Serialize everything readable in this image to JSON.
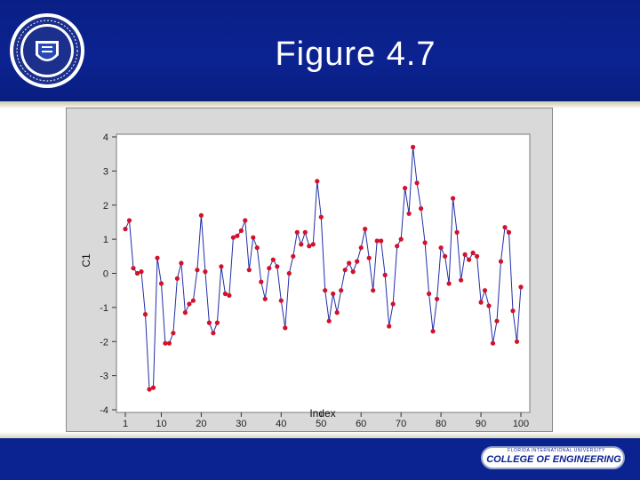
{
  "slide": {
    "title": "Figure 4.7",
    "footer_tagline": "FLORIDA INTERNATIONAL UNIVERSITY",
    "footer_college": "COLLEGE OF ENGINEERING"
  },
  "colors": {
    "header_blue": "#0b2291",
    "series_line": "#1f2fa8",
    "series_point": "#d4102a",
    "plot_bg": "#ffffff",
    "frame_bg": "#d9d9d9"
  },
  "chart_data": {
    "type": "line",
    "title": "",
    "xlabel": "Index",
    "ylabel": "C1",
    "xlim": [
      1,
      100
    ],
    "ylim": [
      -4,
      4
    ],
    "xticks": [
      1,
      10,
      20,
      30,
      40,
      50,
      60,
      70,
      80,
      90,
      100
    ],
    "yticks": [
      4,
      3,
      2,
      1,
      0,
      -1,
      -2,
      -3,
      -4
    ],
    "grid": false,
    "legend": "none",
    "x": [
      1,
      2,
      3,
      4,
      5,
      6,
      7,
      8,
      9,
      10,
      11,
      12,
      13,
      14,
      15,
      16,
      17,
      18,
      19,
      20,
      21,
      22,
      23,
      24,
      25,
      26,
      27,
      28,
      29,
      30,
      31,
      32,
      33,
      34,
      35,
      36,
      37,
      38,
      39,
      40,
      41,
      42,
      43,
      44,
      45,
      46,
      47,
      48,
      49,
      50,
      51,
      52,
      53,
      54,
      55,
      56,
      57,
      58,
      59,
      60,
      61,
      62,
      63,
      64,
      65,
      66,
      67,
      68,
      69,
      70,
      71,
      72,
      73,
      74,
      75,
      76,
      77,
      78,
      79,
      80,
      81,
      82,
      83,
      84,
      85,
      86,
      87,
      88,
      89,
      90,
      91,
      92,
      93,
      94,
      95,
      96,
      97,
      98,
      99,
      100
    ],
    "series": [
      {
        "name": "",
        "values": [
          1.3,
          1.55,
          0.15,
          0,
          0.05,
          -1.2,
          -3.4,
          -3.35,
          0.45,
          -0.3,
          -2.05,
          -2.05,
          -1.75,
          -0.15,
          0.3,
          -1.15,
          -0.9,
          -0.8,
          0.1,
          1.7,
          0.05,
          -1.45,
          -1.75,
          -1.45,
          0.2,
          -0.6,
          -0.65,
          1.05,
          1.1,
          1.25,
          1.55,
          0.1,
          1.05,
          0.75,
          -0.25,
          -0.75,
          0.15,
          0.4,
          0.2,
          -0.8,
          -1.6,
          0.0,
          0.5,
          1.2,
          0.85,
          1.2,
          0.8,
          0.85,
          2.7,
          1.65,
          -0.5,
          -1.4,
          -0.6,
          -1.15,
          -0.5,
          0.1,
          0.3,
          0.05,
          0.35,
          0.75,
          1.3,
          0.45,
          -0.5,
          0.95,
          0.95,
          -0.05,
          -1.55,
          -0.9,
          0.8,
          1.0,
          2.5,
          1.75,
          3.7,
          2.65,
          1.9,
          0.9,
          -0.6,
          -1.7,
          -0.75,
          0.75,
          0.5,
          -0.3,
          2.2,
          1.2,
          -0.2,
          0.55,
          0.4,
          0.6,
          0.5,
          -0.85,
          -0.5,
          -0.95,
          -2.05,
          -1.4,
          0.35,
          1.35,
          1.2,
          -1.1,
          -2.0,
          -0.4
        ]
      }
    ]
  }
}
